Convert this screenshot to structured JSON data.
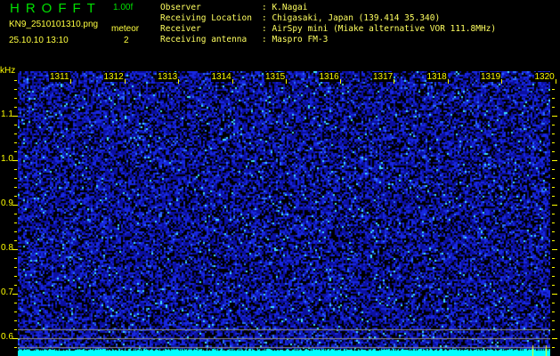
{
  "header": {
    "logo": "HROFFT",
    "version": "1.00f",
    "filename": "KN9_2510101310.png",
    "datetime": "25.10.10 13:10",
    "meteor_label": "meteor",
    "meteor_count": "2"
  },
  "station": {
    "rows": [
      {
        "label": "Observer",
        "value": "K.Nagai"
      },
      {
        "label": "Receiving Location",
        "value": "Chigasaki, Japan (139.414 35.340)"
      },
      {
        "label": "Receiver",
        "value": "AirSpy mini (Miake alternative VOR 111.8MHz)"
      },
      {
        "label": "Receiving antenna",
        "value": "Maspro FM-3"
      }
    ]
  },
  "spectrogram": {
    "y_unit": "kHz",
    "y_ticks": [
      "1.1",
      "1.0",
      "0.9",
      "0.8",
      "0.7",
      "0.6"
    ],
    "time_labels": [
      "1311",
      "1312",
      "1313",
      "1314",
      "1315",
      "1316",
      "1317",
      "1318",
      "1319",
      "1320"
    ],
    "colors": {
      "background": "#000000",
      "noise": "#1020d0",
      "bright": "#30c0ff",
      "baseline": "#00ffff",
      "text": "#ffff00",
      "guide": "#909090"
    }
  }
}
